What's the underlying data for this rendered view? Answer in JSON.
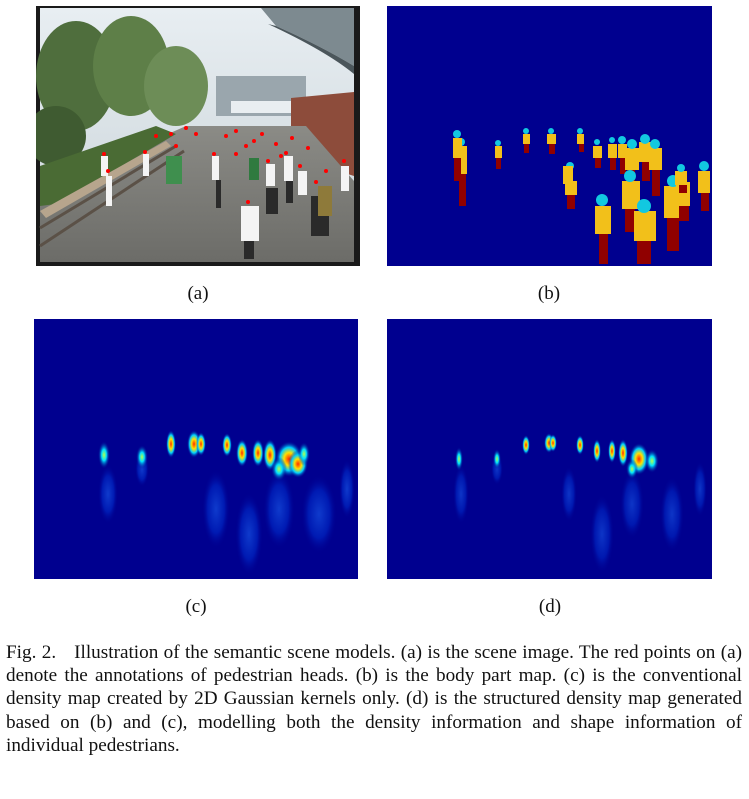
{
  "figure": {
    "panels": [
      {
        "id": "a",
        "label": "(a)",
        "image": "scene-image"
      },
      {
        "id": "b",
        "label": "(b)",
        "image": "body-part-map"
      },
      {
        "id": "c",
        "label": "(c)",
        "image": "conventional-density-map"
      },
      {
        "id": "d",
        "label": "(d)",
        "image": "structured-density-map"
      }
    ],
    "colors": {
      "map_background": "#00008f",
      "head_part": "#12c8e0",
      "torso_part": "#f2c01a",
      "legs_part": "#900000",
      "annotation_point": "#ff0000"
    },
    "caption_lead": "Fig. 2.",
    "caption": "Illustration of the semantic scene models. (a) is the scene image. The red points on (a) denote the annotations of pedestrian heads. (b) is the body part map. (c) is the conventional density map created by 2D Gaussian kernels only. (d) is the structured density map generated based on (b) and (c), modelling both the density information and shape information of individual pedestrians."
  }
}
